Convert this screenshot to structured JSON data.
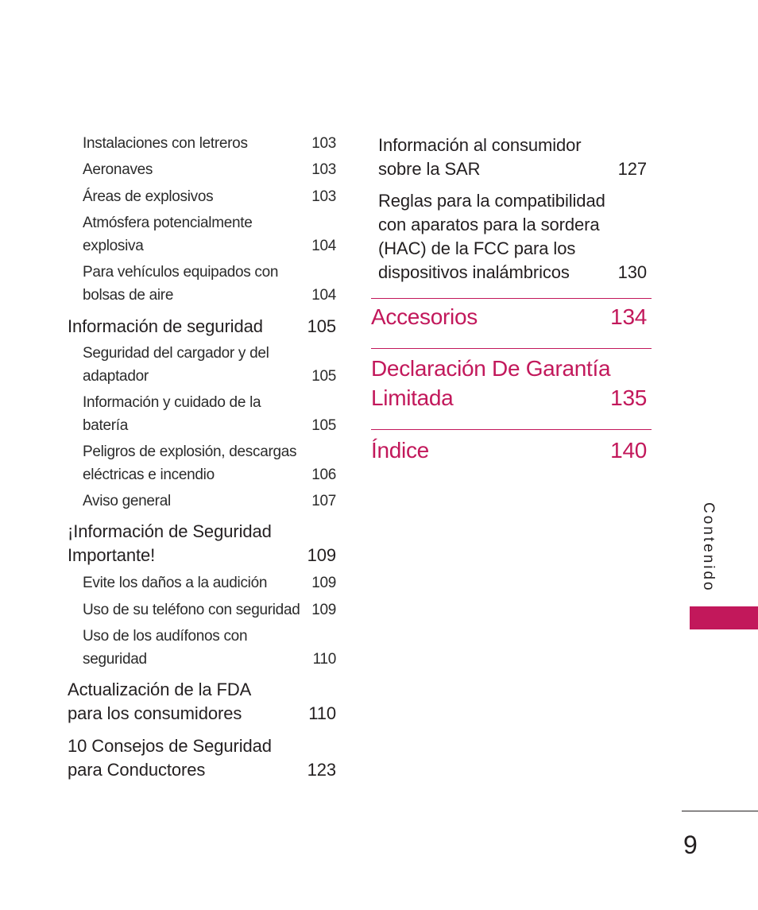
{
  "left_entries": [
    {
      "lines": [
        "Instalaciones con letreros"
      ],
      "page": "103"
    },
    {
      "lines": [
        "Aeronaves"
      ],
      "page": "103"
    },
    {
      "lines": [
        "Áreas de explosivos"
      ],
      "page": "103"
    },
    {
      "lines": [
        "Atmósfera potencialmente",
        "explosiva"
      ],
      "page": "104"
    },
    {
      "lines": [
        "Para vehículos equipados con",
        "bolsas de aire"
      ],
      "page": "104"
    },
    {
      "lines": [
        "Información de seguridad"
      ],
      "page": "105"
    },
    {
      "lines": [
        "Seguridad del cargador y del",
        "adaptador"
      ],
      "page": "105"
    },
    {
      "lines": [
        "Información y cuidado de la",
        "batería"
      ],
      "page": "105"
    },
    {
      "lines": [
        "Peligros de explosión, descargas",
        "eléctricas e incendio"
      ],
      "page": "106"
    },
    {
      "lines": [
        "Aviso general"
      ],
      "page": "107"
    },
    {
      "lines": [
        "¡Información de Seguridad",
        "Importante!"
      ],
      "page": "109"
    },
    {
      "lines": [
        "Evite los daños a la audición"
      ],
      "page": "109"
    },
    {
      "lines": [
        "Uso de su teléfono con seguridad"
      ],
      "page": "109"
    },
    {
      "lines": [
        "Uso de los audífonos con",
        "seguridad"
      ],
      "page": "110"
    },
    {
      "lines": [
        "Actualización de la FDA",
        "para los consumidores"
      ],
      "page": "110"
    },
    {
      "lines": [
        "10 Consejos de Seguridad",
        "para Conductores"
      ],
      "page": "123"
    }
  ],
  "right_entries": [
    {
      "lines": [
        "Información al consumidor",
        "sobre la SAR"
      ],
      "page": "127"
    },
    {
      "lines": [
        "Reglas para la compatibilidad",
        "con aparatos para la sordera",
        "(HAC) de la FCC para los",
        "dispositivos inalámbricos"
      ],
      "page": "130"
    }
  ],
  "sections": [
    {
      "lines": [
        "Accesorios"
      ],
      "page": "134"
    },
    {
      "lines": [
        "Declaración De Garantía",
        "Limitada"
      ],
      "page": "135"
    },
    {
      "lines": [
        "Índice"
      ],
      "page": "140"
    }
  ],
  "side_tab_label": "Contenido",
  "page_number": "9",
  "colors": {
    "accent": "#c2185b",
    "text": "#231f20"
  }
}
